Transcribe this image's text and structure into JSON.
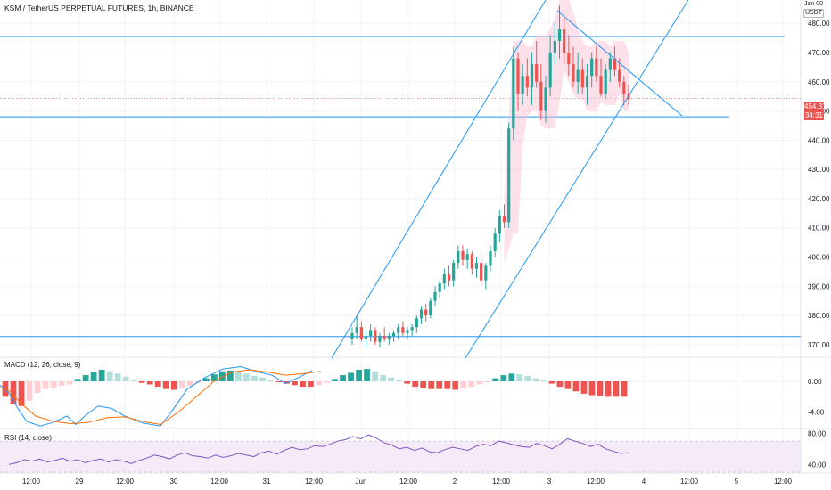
{
  "header": {
    "title": "KSM / TetherUS PERPETUAL FUTURES, 1h, BINANCE",
    "top_right_small": "Jan 00",
    "currency": "USDT"
  },
  "price_tag": {
    "price": "454.31",
    "countdown": "34:31",
    "color": "#ef5350"
  },
  "colors": {
    "up": "#26a69a",
    "down": "#ef5350",
    "trendline": "#2196f3",
    "macd_line": "#2196f3",
    "signal_line": "#ff6d00",
    "rsi_line": "#7e57c2",
    "rsi_band": "#f3e5f5",
    "bb_fill": "#f8bbd0"
  },
  "indicators": {
    "macd_label": "MACD (12, 26, close, 9)",
    "rsi_label": "RSI (14, close)"
  },
  "chart_data": [
    {
      "id": "price",
      "type": "candlestick",
      "yticks": [
        "480.00",
        "470.00",
        "460.00",
        "450.00",
        "440.00",
        "430.00",
        "420.00",
        "410.00",
        "400.00",
        "390.00",
        "380.00",
        "370.00"
      ],
      "ylim": [
        366,
        488
      ],
      "candles_ohlc": [
        [
          372,
          376,
          370,
          374
        ],
        [
          374,
          380,
          372,
          376
        ],
        [
          376,
          378,
          371,
          372
        ],
        [
          372,
          375,
          369,
          373
        ],
        [
          373,
          377,
          371,
          375
        ],
        [
          375,
          376,
          370,
          371
        ],
        [
          371,
          374,
          369,
          373
        ],
        [
          373,
          376,
          371,
          372
        ],
        [
          372,
          374,
          370,
          373
        ],
        [
          373,
          375,
          371,
          374
        ],
        [
          374,
          377,
          372,
          376
        ],
        [
          376,
          378,
          373,
          374
        ],
        [
          374,
          376,
          372,
          375
        ],
        [
          375,
          377,
          373,
          376
        ],
        [
          376,
          380,
          374,
          379
        ],
        [
          379,
          383,
          377,
          382
        ],
        [
          382,
          384,
          378,
          380
        ],
        [
          380,
          386,
          379,
          385
        ],
        [
          385,
          390,
          383,
          388
        ],
        [
          388,
          392,
          386,
          391
        ],
        [
          391,
          396,
          389,
          394
        ],
        [
          394,
          397,
          390,
          392
        ],
        [
          392,
          399,
          390,
          398
        ],
        [
          398,
          404,
          396,
          402
        ],
        [
          402,
          404,
          397,
          399
        ],
        [
          399,
          403,
          396,
          401
        ],
        [
          401,
          402,
          394,
          396
        ],
        [
          396,
          400,
          393,
          398
        ],
        [
          398,
          401,
          390,
          392
        ],
        [
          392,
          398,
          389,
          397
        ],
        [
          397,
          404,
          395,
          402
        ],
        [
          402,
          410,
          400,
          408
        ],
        [
          408,
          416,
          405,
          414
        ],
        [
          414,
          418,
          410,
          412
        ],
        [
          412,
          446,
          410,
          444
        ],
        [
          444,
          472,
          440,
          468
        ],
        [
          468,
          470,
          450,
          456
        ],
        [
          456,
          466,
          452,
          462
        ],
        [
          462,
          468,
          455,
          458
        ],
        [
          458,
          470,
          452,
          466
        ],
        [
          466,
          474,
          458,
          460
        ],
        [
          460,
          466,
          447,
          450
        ],
        [
          450,
          462,
          446,
          458
        ],
        [
          458,
          476,
          455,
          470
        ],
        [
          470,
          480,
          466,
          474
        ],
        [
          474,
          486,
          468,
          478
        ],
        [
          478,
          482,
          466,
          470
        ],
        [
          470,
          476,
          462,
          466
        ],
        [
          466,
          472,
          458,
          460
        ],
        [
          460,
          470,
          456,
          464
        ],
        [
          464,
          468,
          456,
          458
        ],
        [
          458,
          466,
          452,
          462
        ],
        [
          462,
          470,
          458,
          468
        ],
        [
          468,
          472,
          460,
          462
        ],
        [
          462,
          468,
          455,
          456
        ],
        [
          456,
          466,
          454,
          464
        ],
        [
          464,
          470,
          460,
          468
        ],
        [
          468,
          472,
          462,
          464
        ],
        [
          464,
          468,
          458,
          460
        ],
        [
          460,
          462,
          452,
          456
        ],
        [
          456,
          459,
          452,
          454
        ]
      ],
      "horizontal_levels": [
        475.5,
        448.0,
        372.8
      ],
      "current_price": 454.31
    },
    {
      "id": "macd",
      "type": "histogram+lines",
      "yticks": [
        "0.00",
        "-4.00"
      ],
      "ylim": [
        -6,
        3
      ],
      "histogram": [
        -2,
        -3,
        -3.2,
        -2.5,
        -1.5,
        -1,
        -0.8,
        -0.6,
        -0.4,
        0.3,
        0.8,
        1.2,
        1.5,
        1.3,
        1,
        0.6,
        0.2,
        -0.2,
        -0.4,
        -0.7,
        -1,
        -1.1,
        -0.9,
        -0.6,
        -0.2,
        0.4,
        0.9,
        1.3,
        1.4,
        1.2,
        1,
        0.7,
        0.5,
        0.2,
        -0.1,
        -0.3,
        -0.5,
        -0.7,
        -0.7,
        -0.5,
        -0.2,
        0.3,
        0.8,
        1.1,
        1.5,
        1.6,
        1.3,
        0.8,
        0.5,
        0.2,
        -0.3,
        -0.7,
        -0.9,
        -1.0,
        -1.0,
        -1.0,
        -1.1,
        -0.9,
        -0.7,
        -0.4,
        -0.1,
        0.4,
        0.8,
        1.0,
        0.9,
        0.7,
        0.4,
        0.1,
        -0.3,
        -0.7,
        -1.0,
        -1.3,
        -1.6,
        -1.8,
        -1.9,
        -2.0,
        -2.0,
        -2.0
      ]
    },
    {
      "id": "rsi",
      "type": "line",
      "yticks": [
        "80.00",
        "40.00"
      ],
      "ylim": [
        30,
        85
      ],
      "band": [
        70,
        30
      ],
      "values": [
        40,
        42,
        46,
        44,
        47,
        43,
        45,
        48,
        44,
        46,
        42,
        45,
        47,
        43,
        46,
        44,
        41,
        45,
        48,
        52,
        50,
        47,
        52,
        55,
        51,
        50,
        48,
        52,
        49,
        51,
        54,
        52,
        50,
        55,
        57,
        53,
        58,
        62,
        59,
        60,
        64,
        63,
        66,
        70,
        72,
        76,
        73,
        78,
        74,
        68,
        65,
        60,
        62,
        58,
        61,
        56,
        55,
        59,
        62,
        60,
        58,
        63,
        66,
        64,
        70,
        68,
        65,
        63,
        62,
        67,
        64,
        60,
        66,
        73,
        70,
        67,
        63,
        66,
        60,
        57,
        54,
        55
      ]
    }
  ],
  "time_axis": {
    "ticks": [
      "12:00",
      "29",
      "12:00",
      "30",
      "12:00",
      "31",
      "12:00",
      "Jun",
      "12:00",
      "2",
      "12:00",
      "3",
      "12:00",
      "4",
      "12:00",
      "5",
      "12:00"
    ]
  }
}
